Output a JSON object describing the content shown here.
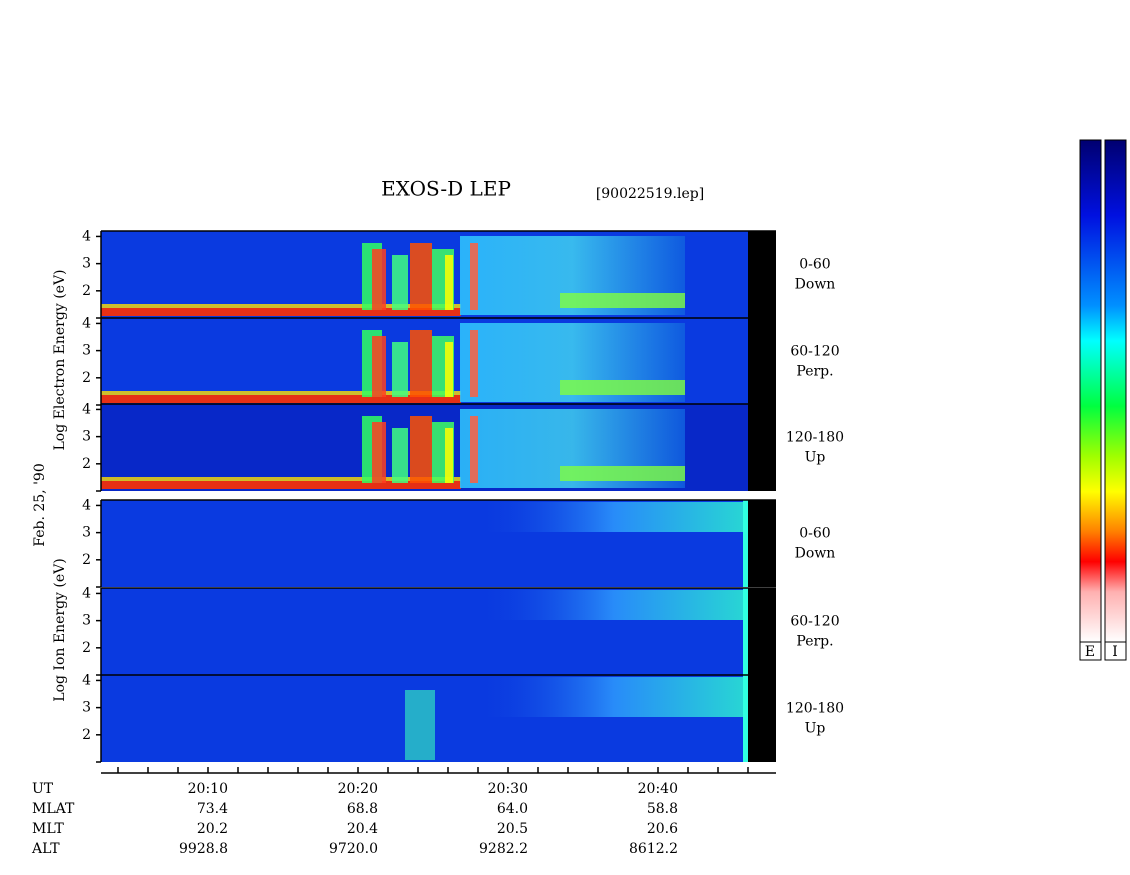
{
  "chart_data": {
    "type": "spectrogram",
    "title": "EXOS-D LEP",
    "file": "[90022519.lep]",
    "date": "Feb. 25, '90",
    "groups": [
      {
        "label": "Log Electron Energy (eV)",
        "panels": [
          [
            "0-60",
            "Down"
          ],
          [
            "60-120",
            "Perp."
          ],
          [
            "120-180",
            "Up"
          ]
        ]
      },
      {
        "label": "Log Ion Energy (eV)",
        "panels": [
          [
            "0-60",
            "Down"
          ],
          [
            "60-120",
            "Perp."
          ],
          [
            "120-180",
            "Up"
          ]
        ]
      }
    ],
    "ylim": [
      1,
      4.2
    ],
    "yticks": [
      2,
      3,
      4
    ],
    "orbit": [
      [
        "UT",
        "20:10",
        "20:20",
        "20:30",
        "20:40"
      ],
      [
        "MLAT",
        "73.4",
        "68.8",
        "64.0",
        "58.8"
      ],
      [
        "MLT",
        "20.2",
        "20.4",
        "20.5",
        "20.6"
      ],
      [
        "ALT",
        "9928.8",
        "9720.0",
        "9282.2",
        "8612.2"
      ]
    ],
    "colorbar_labels": [
      "E",
      "I"
    ]
  }
}
